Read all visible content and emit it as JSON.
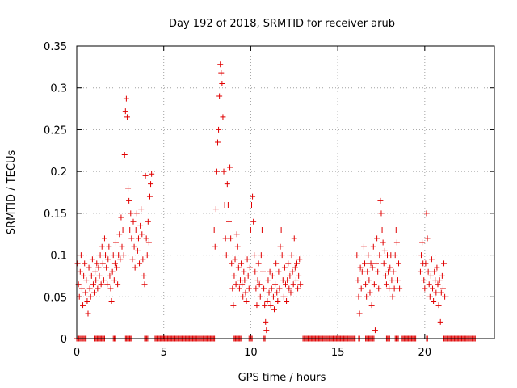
{
  "chart_data": {
    "type": "scatter",
    "title": "Day 192 of 2018, SRMTID for receiver arub",
    "xlabel": "GPS time / hours",
    "ylabel": "SRMTID / TECUs",
    "xlim": [
      0,
      24
    ],
    "ylim": [
      0,
      0.35
    ],
    "xticks": [
      0,
      5,
      10,
      15,
      20
    ],
    "yticks": [
      0,
      0.05,
      0.1,
      0.15,
      0.2,
      0.25,
      0.3,
      0.35
    ],
    "xtick_labels": [
      "0",
      "5",
      "10",
      "15",
      "20"
    ],
    "ytick_labels": [
      "0",
      "0.05",
      "0.1",
      "0.15",
      "0.2",
      "0.25",
      "0.3",
      "0.35"
    ],
    "grid": true,
    "marker": "+",
    "color": "#e00000",
    "series": [
      {
        "name": "SRMTID",
        "points": [
          [
            0.05,
            0.09
          ],
          [
            0.1,
            0.065
          ],
          [
            0.15,
            0.05
          ],
          [
            0.2,
            0.08
          ],
          [
            0.25,
            0.1
          ],
          [
            0.3,
            0.06
          ],
          [
            0.35,
            0.04
          ],
          [
            0.4,
            0.075
          ],
          [
            0.45,
            0.09
          ],
          [
            0.5,
            0.055
          ],
          [
            0.55,
            0.07
          ],
          [
            0.6,
            0.045
          ],
          [
            0.65,
            0.03
          ],
          [
            0.7,
            0.085
          ],
          [
            0.75,
            0.06
          ],
          [
            0.8,
            0.05
          ],
          [
            0.85,
            0.075
          ],
          [
            0.9,
            0.095
          ],
          [
            0.95,
            0.065
          ],
          [
            1.0,
            0.055
          ],
          [
            1.05,
            0.08
          ],
          [
            1.1,
            0.07
          ],
          [
            1.15,
            0.09
          ],
          [
            1.2,
            0.06
          ],
          [
            1.25,
            0.085
          ],
          [
            1.3,
            0.075
          ],
          [
            1.35,
            0.1
          ],
          [
            1.4,
            0.065
          ],
          [
            1.45,
            0.11
          ],
          [
            1.5,
            0.09
          ],
          [
            1.55,
            0.07
          ],
          [
            1.6,
            0.12
          ],
          [
            1.65,
            0.1
          ],
          [
            1.7,
            0.085
          ],
          [
            1.75,
            0.065
          ],
          [
            1.8,
            0.095
          ],
          [
            1.85,
            0.11
          ],
          [
            1.9,
            0.075
          ],
          [
            1.95,
            0.06
          ],
          [
            2.0,
            0.045
          ],
          [
            2.05,
            0.08
          ],
          [
            2.1,
            0.1
          ],
          [
            2.15,
            0.07
          ],
          [
            2.2,
            0.09
          ],
          [
            2.25,
            0.115
          ],
          [
            2.3,
            0.085
          ],
          [
            2.35,
            0.065
          ],
          [
            2.4,
            0.1
          ],
          [
            2.45,
            0.125
          ],
          [
            2.5,
            0.095
          ],
          [
            2.55,
            0.145
          ],
          [
            2.6,
            0.11
          ],
          [
            2.65,
            0.13
          ],
          [
            2.7,
            0.1
          ],
          [
            2.75,
            0.22
          ],
          [
            2.8,
            0.272
          ],
          [
            2.85,
            0.287
          ],
          [
            2.9,
            0.265
          ],
          [
            2.95,
            0.18
          ],
          [
            3.0,
            0.165
          ],
          [
            3.05,
            0.13
          ],
          [
            3.1,
            0.15
          ],
          [
            3.15,
            0.12
          ],
          [
            3.2,
            0.095
          ],
          [
            3.25,
            0.14
          ],
          [
            3.3,
            0.11
          ],
          [
            3.35,
            0.085
          ],
          [
            3.4,
            0.13
          ],
          [
            3.45,
            0.15
          ],
          [
            3.5,
            0.105
          ],
          [
            3.55,
            0.12
          ],
          [
            3.6,
            0.09
          ],
          [
            3.65,
            0.135
          ],
          [
            3.7,
            0.155
          ],
          [
            3.75,
            0.125
          ],
          [
            3.8,
            0.095
          ],
          [
            3.85,
            0.075
          ],
          [
            3.9,
            0.065
          ],
          [
            3.95,
            0.195
          ],
          [
            4.0,
            0.12
          ],
          [
            4.05,
            0.1
          ],
          [
            4.1,
            0.14
          ],
          [
            4.15,
            0.115
          ],
          [
            4.2,
            0.17
          ],
          [
            4.25,
            0.185
          ],
          [
            4.3,
            0.197
          ],
          [
            7.9,
            0.13
          ],
          [
            7.95,
            0.11
          ],
          [
            8.0,
            0.155
          ],
          [
            8.05,
            0.2
          ],
          [
            8.1,
            0.235
          ],
          [
            8.15,
            0.25
          ],
          [
            8.2,
            0.29
          ],
          [
            8.25,
            0.328
          ],
          [
            8.3,
            0.318
          ],
          [
            8.35,
            0.305
          ],
          [
            8.4,
            0.265
          ],
          [
            8.45,
            0.2
          ],
          [
            8.5,
            0.16
          ],
          [
            8.55,
            0.12
          ],
          [
            8.6,
            0.1
          ],
          [
            8.65,
            0.185
          ],
          [
            8.7,
            0.16
          ],
          [
            8.75,
            0.14
          ],
          [
            8.8,
            0.205
          ],
          [
            8.85,
            0.12
          ],
          [
            8.9,
            0.09
          ],
          [
            8.95,
            0.06
          ],
          [
            9.0,
            0.04
          ],
          [
            9.05,
            0.075
          ],
          [
            9.1,
            0.095
          ],
          [
            9.15,
            0.065
          ],
          [
            9.2,
            0.125
          ],
          [
            9.25,
            0.11
          ],
          [
            9.3,
            0.085
          ],
          [
            9.35,
            0.06
          ],
          [
            9.4,
            0.07
          ],
          [
            9.45,
            0.09
          ],
          [
            9.5,
            0.065
          ],
          [
            9.55,
            0.05
          ],
          [
            9.6,
            0.08
          ],
          [
            9.65,
            0.07
          ],
          [
            9.7,
            0.055
          ],
          [
            9.75,
            0.045
          ],
          [
            9.8,
            0.095
          ],
          [
            9.85,
            0.075
          ],
          [
            9.9,
            0.06
          ],
          [
            9.95,
            0.085
          ],
          [
            10.0,
            0.13
          ],
          [
            10.05,
            0.16
          ],
          [
            10.1,
            0.17
          ],
          [
            10.15,
            0.14
          ],
          [
            10.2,
            0.1
          ],
          [
            10.25,
            0.08
          ],
          [
            10.3,
            0.06
          ],
          [
            10.35,
            0.04
          ],
          [
            10.4,
            0.07
          ],
          [
            10.45,
            0.09
          ],
          [
            10.5,
            0.065
          ],
          [
            10.55,
            0.05
          ],
          [
            10.6,
            0.1
          ],
          [
            10.65,
            0.13
          ],
          [
            10.7,
            0.08
          ],
          [
            10.75,
            0.06
          ],
          [
            10.8,
            0.04
          ],
          [
            10.85,
            0.02
          ],
          [
            10.9,
            0.01
          ],
          [
            10.95,
            0.045
          ],
          [
            11.0,
            0.07
          ],
          [
            11.05,
            0.055
          ],
          [
            11.1,
            0.08
          ],
          [
            11.15,
            0.04
          ],
          [
            11.2,
            0.06
          ],
          [
            11.25,
            0.075
          ],
          [
            11.3,
            0.05
          ],
          [
            11.35,
            0.035
          ],
          [
            11.4,
            0.065
          ],
          [
            11.45,
            0.09
          ],
          [
            11.5,
            0.055
          ],
          [
            11.55,
            0.045
          ],
          [
            11.6,
            0.08
          ],
          [
            11.65,
            0.06
          ],
          [
            11.7,
            0.11
          ],
          [
            11.75,
            0.13
          ],
          [
            11.8,
            0.1
          ],
          [
            11.85,
            0.07
          ],
          [
            11.9,
            0.05
          ],
          [
            11.95,
            0.085
          ],
          [
            12.0,
            0.065
          ],
          [
            12.05,
            0.045
          ],
          [
            12.1,
            0.07
          ],
          [
            12.15,
            0.09
          ],
          [
            12.2,
            0.06
          ],
          [
            12.25,
            0.075
          ],
          [
            12.3,
            0.055
          ],
          [
            12.35,
            0.1
          ],
          [
            12.4,
            0.08
          ],
          [
            12.45,
            0.065
          ],
          [
            12.5,
            0.12
          ],
          [
            12.55,
            0.085
          ],
          [
            12.6,
            0.07
          ],
          [
            12.65,
            0.09
          ],
          [
            12.7,
            0.06
          ],
          [
            12.75,
            0.075
          ],
          [
            12.8,
            0.095
          ],
          [
            12.85,
            0.065
          ],
          [
            16.1,
            0.1
          ],
          [
            16.15,
            0.07
          ],
          [
            16.2,
            0.05
          ],
          [
            16.25,
            0.03
          ],
          [
            16.3,
            0.085
          ],
          [
            16.35,
            0.06
          ],
          [
            16.4,
            0.08
          ],
          [
            16.5,
            0.11
          ],
          [
            16.55,
            0.09
          ],
          [
            16.6,
            0.065
          ],
          [
            16.65,
            0.05
          ],
          [
            16.7,
            0.08
          ],
          [
            16.75,
            0.1
          ],
          [
            16.8,
            0.07
          ],
          [
            16.85,
            0.055
          ],
          [
            16.9,
            0.09
          ],
          [
            16.95,
            0.04
          ],
          [
            17.0,
            0.085
          ],
          [
            17.05,
            0.11
          ],
          [
            17.1,
            0.065
          ],
          [
            17.15,
            0.01
          ],
          [
            17.2,
            0.09
          ],
          [
            17.25,
            0.12
          ],
          [
            17.3,
            0.08
          ],
          [
            17.35,
            0.06
          ],
          [
            17.4,
            0.1
          ],
          [
            17.45,
            0.165
          ],
          [
            17.5,
            0.15
          ],
          [
            17.55,
            0.13
          ],
          [
            17.6,
            0.115
          ],
          [
            17.65,
            0.09
          ],
          [
            17.7,
            0.105
          ],
          [
            17.75,
            0.075
          ],
          [
            17.8,
            0.065
          ],
          [
            17.85,
            0.1
          ],
          [
            17.9,
            0.08
          ],
          [
            17.95,
            0.06
          ],
          [
            18.0,
            0.085
          ],
          [
            18.05,
            0.1
          ],
          [
            18.1,
            0.07
          ],
          [
            18.15,
            0.05
          ],
          [
            18.2,
            0.08
          ],
          [
            18.25,
            0.06
          ],
          [
            18.3,
            0.1
          ],
          [
            18.35,
            0.13
          ],
          [
            18.4,
            0.115
          ],
          [
            18.45,
            0.07
          ],
          [
            18.5,
            0.09
          ],
          [
            18.55,
            0.06
          ],
          [
            19.75,
            0.08
          ],
          [
            19.8,
            0.1
          ],
          [
            19.85,
            0.115
          ],
          [
            19.9,
            0.09
          ],
          [
            19.95,
            0.07
          ],
          [
            20.0,
            0.06
          ],
          [
            20.05,
            0.09
          ],
          [
            20.1,
            0.15
          ],
          [
            20.15,
            0.12
          ],
          [
            20.2,
            0.08
          ],
          [
            20.25,
            0.065
          ],
          [
            20.3,
            0.05
          ],
          [
            20.35,
            0.075
          ],
          [
            20.4,
            0.095
          ],
          [
            20.45,
            0.06
          ],
          [
            20.5,
            0.045
          ],
          [
            20.55,
            0.08
          ],
          [
            20.6,
            0.07
          ],
          [
            20.65,
            0.055
          ],
          [
            20.7,
            0.085
          ],
          [
            20.75,
            0.065
          ],
          [
            20.8,
            0.04
          ],
          [
            20.85,
            0.07
          ],
          [
            20.9,
            0.02
          ],
          [
            20.95,
            0.055
          ],
          [
            21.0,
            0.075
          ],
          [
            21.05,
            0.06
          ],
          [
            21.1,
            0.09
          ],
          [
            21.15,
            0.05
          ]
        ]
      }
    ],
    "zero_band_hours": [
      [
        0.0,
        0.55
      ],
      [
        1.0,
        1.6
      ],
      [
        2.1,
        2.25
      ],
      [
        2.8,
        3.2
      ],
      [
        3.9,
        4.1
      ],
      [
        4.5,
        7.95
      ],
      [
        9.0,
        9.5
      ],
      [
        9.9,
        10.1
      ],
      [
        10.7,
        10.85
      ],
      [
        13.0,
        16.0
      ],
      [
        16.2,
        16.3
      ],
      [
        16.6,
        17.1
      ],
      [
        17.8,
        18.0
      ],
      [
        18.3,
        18.5
      ],
      [
        18.7,
        19.5
      ],
      [
        20.1,
        20.2
      ],
      [
        21.1,
        22.9
      ]
    ]
  }
}
